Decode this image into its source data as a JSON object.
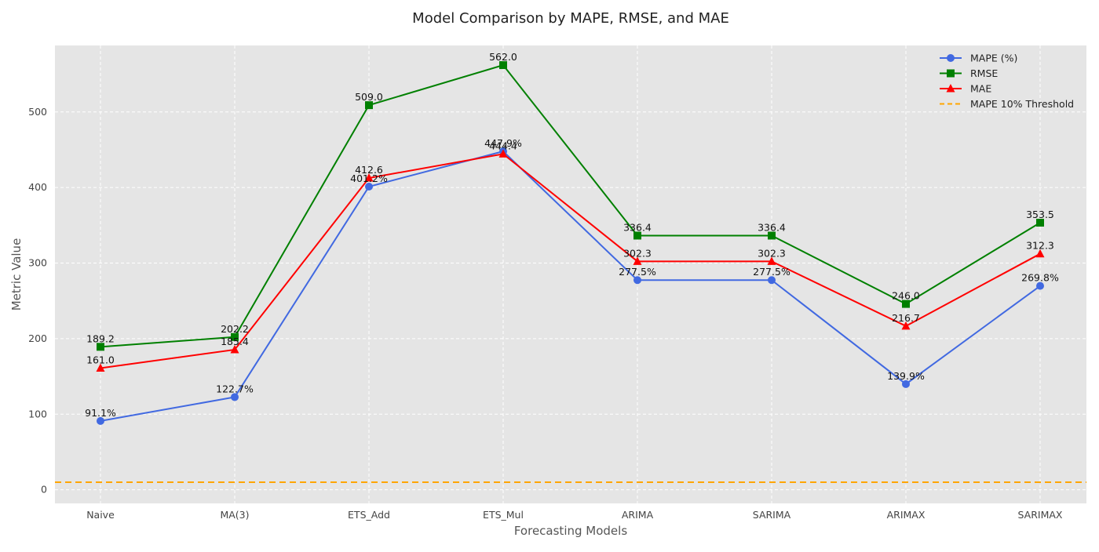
{
  "chart_data": {
    "type": "line",
    "title": "Model Comparison by MAPE, RMSE, and MAE",
    "xlabel": "Forecasting Models",
    "ylabel": "Metric Value",
    "categories": [
      "Naive",
      "MA(3)",
      "ETS_Add",
      "ETS_Mul",
      "ARIMA",
      "SARIMA",
      "ARIMAX",
      "SARIMAX"
    ],
    "ylim": [
      -18,
      588
    ],
    "yticks": [
      0,
      100,
      200,
      300,
      400,
      500
    ],
    "grid": true,
    "legend_position": "top-right",
    "series": [
      {
        "name": "MAPE (%)",
        "values": [
          91.1,
          122.7,
          401.2,
          447.9,
          277.5,
          277.5,
          139.9,
          269.8
        ],
        "labels": [
          "91.1%",
          "122.7%",
          "401.2%",
          "447.9%",
          "277.5%",
          "277.5%",
          "139.9%",
          "269.8%"
        ],
        "color": "#4169e1",
        "marker": "circle"
      },
      {
        "name": "RMSE",
        "values": [
          189.2,
          202.2,
          509.0,
          562.0,
          336.4,
          336.4,
          246.0,
          353.5
        ],
        "labels": [
          "189.2",
          "202.2",
          "509.0",
          "562.0",
          "336.4",
          "336.4",
          "246.0",
          "353.5"
        ],
        "color": "#008000",
        "marker": "square"
      },
      {
        "name": "MAE",
        "values": [
          161.0,
          185.4,
          412.6,
          444.4,
          302.3,
          302.3,
          216.7,
          312.3
        ],
        "labels": [
          "161.0",
          "185.4",
          "412.6",
          "444.4",
          "302.3",
          "302.3",
          "216.7",
          "312.3"
        ],
        "color": "#ff0000",
        "marker": "triangle"
      }
    ],
    "reference_lines": [
      {
        "name": "MAPE 10% Threshold",
        "value": 10,
        "color": "#ffa500",
        "style": "dashed"
      }
    ]
  }
}
